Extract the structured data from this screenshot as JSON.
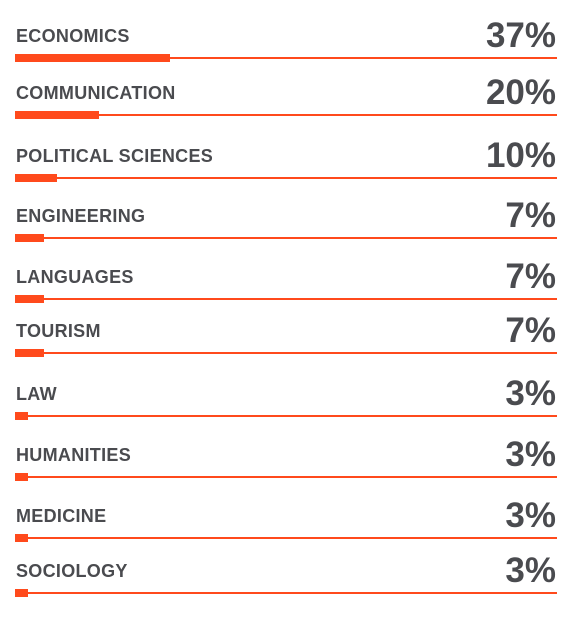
{
  "chart_data": {
    "type": "bar",
    "orientation": "horizontal",
    "categories": [
      "ECONOMICS",
      "COMMUNICATION",
      "POLITICAL SCIENCES",
      "ENGINEERING",
      "LANGUAGES",
      "TOURISM",
      "LAW",
      "HUMANITIES",
      "MEDICINE",
      "SOCIOLOGY"
    ],
    "values": [
      37,
      20,
      10,
      7,
      7,
      7,
      3,
      3,
      3,
      3
    ],
    "value_labels": [
      "37%",
      "20%",
      "10%",
      "7%",
      "7%",
      "7%",
      "3%",
      "3%",
      "3%",
      "3%"
    ],
    "xlim": [
      0,
      100
    ],
    "grid": false,
    "legend": "none"
  },
  "colors": {
    "accent": "#ff4a1c",
    "text": "#4a4b4f",
    "background": "#ffffff"
  }
}
